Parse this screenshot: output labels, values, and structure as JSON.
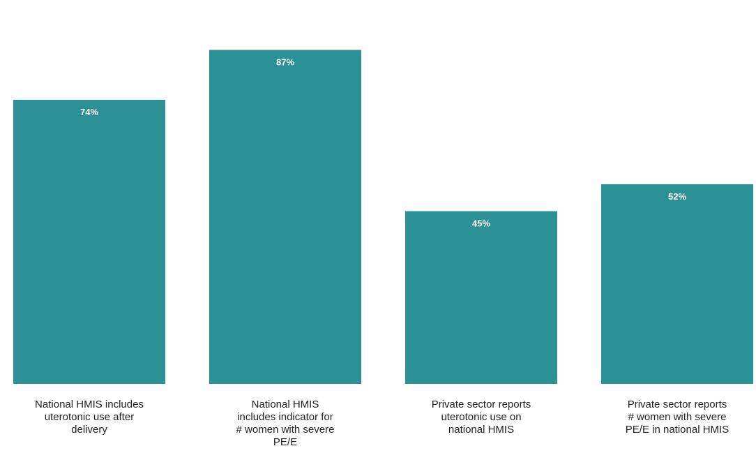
{
  "chart_data": {
    "type": "bar",
    "title": "",
    "xlabel": "",
    "ylabel": "",
    "ylim": [
      0,
      100
    ],
    "grid": false,
    "bar_color": "#2b9194",
    "value_label_color": "#ffffff",
    "categories": [
      [
        "National HMIS includes",
        "uterotonic use after",
        "delivery"
      ],
      [
        "National HMIS",
        "includes indicator for",
        "# women with severe",
        "PE/E"
      ],
      [
        "Private sector reports",
        "uterotonic use on",
        "national HMIS"
      ],
      [
        "Private sector reports",
        "# women with severe",
        "PE/E in national HMIS"
      ]
    ],
    "values": [
      74,
      87,
      45,
      52
    ],
    "value_labels": [
      "74%",
      "87%",
      "45%",
      "52%"
    ]
  }
}
